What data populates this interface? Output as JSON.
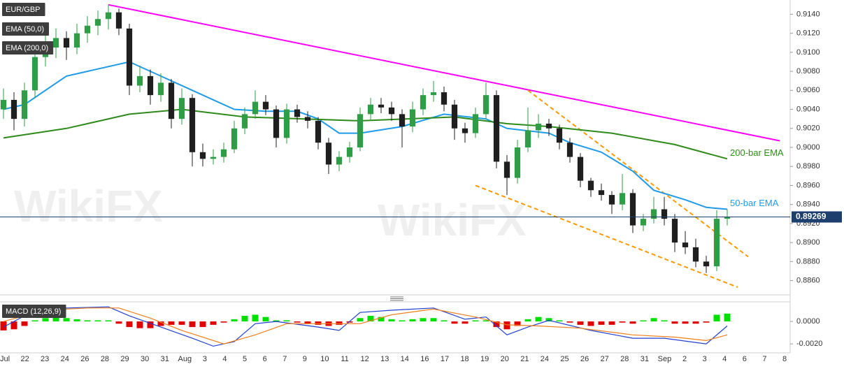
{
  "watermark": "WikiFX",
  "chart_data": [
    {
      "type": "candlestick",
      "title": "EUR/GBP",
      "up_color": "#2e9d46",
      "down_color": "#1f1f1f",
      "xlim": [
        0,
        75
      ],
      "ylim": [
        0.8845,
        0.9155
      ],
      "yticks": [
        {
          "value": 0.886,
          "label": "0.8860"
        },
        {
          "value": 0.888,
          "label": "0.8880"
        },
        {
          "value": 0.89,
          "label": "0.8900"
        },
        {
          "value": 0.892,
          "label": "0.8920"
        },
        {
          "value": 0.894,
          "label": "0.8940"
        },
        {
          "value": 0.896,
          "label": "0.8960"
        },
        {
          "value": 0.898,
          "label": "0.8980"
        },
        {
          "value": 0.9,
          "label": "0.9000"
        },
        {
          "value": 0.902,
          "label": "0.9020"
        },
        {
          "value": 0.904,
          "label": "0.9040"
        },
        {
          "value": 0.906,
          "label": "0.9060"
        },
        {
          "value": 0.908,
          "label": "0.9080"
        },
        {
          "value": 0.91,
          "label": "0.9100"
        },
        {
          "value": 0.912,
          "label": "0.9120"
        },
        {
          "value": 0.914,
          "label": "0.9140"
        }
      ],
      "x_labels": [
        "Jul",
        "22",
        "23",
        "24",
        "26",
        "28",
        "29",
        "30",
        "31",
        "Aug",
        "3",
        "4",
        "5",
        "6",
        "7",
        "9",
        "10",
        "11",
        "12",
        "13",
        "14",
        "16",
        "17",
        "18",
        "19",
        "20",
        "21",
        "24",
        "25",
        "26",
        "27",
        "28",
        "31",
        "Sep",
        "2",
        "3",
        "4",
        "6",
        "7",
        "8"
      ],
      "last_price": {
        "value": 0.89269,
        "label": "0.89269",
        "color": "#1d3f6e"
      },
      "candles": [
        [
          0.904,
          0.9062,
          0.903,
          0.905
        ],
        [
          0.905,
          0.9058,
          0.9018,
          0.903
        ],
        [
          0.903,
          0.9068,
          0.9022,
          0.906
        ],
        [
          0.906,
          0.9104,
          0.9052,
          0.9095
        ],
        [
          0.9095,
          0.912,
          0.9085,
          0.9105
        ],
        [
          0.9105,
          0.9125,
          0.9094,
          0.9115
        ],
        [
          0.9115,
          0.9122,
          0.9092,
          0.9105
        ],
        [
          0.9105,
          0.913,
          0.9098,
          0.912
        ],
        [
          0.912,
          0.9138,
          0.911,
          0.9128
        ],
        [
          0.9128,
          0.9144,
          0.9118,
          0.9135
        ],
        [
          0.9135,
          0.915,
          0.9124,
          0.9142
        ],
        [
          0.9142,
          0.9146,
          0.9118,
          0.9125
        ],
        [
          0.9125,
          0.913,
          0.9055,
          0.9065
        ],
        [
          0.9065,
          0.9086,
          0.9058,
          0.9075
        ],
        [
          0.9075,
          0.9082,
          0.9045,
          0.9055
        ],
        [
          0.9055,
          0.9078,
          0.9048,
          0.9068
        ],
        [
          0.9068,
          0.9072,
          0.902,
          0.903
        ],
        [
          0.903,
          0.9062,
          0.9024,
          0.9052
        ],
        [
          0.9052,
          0.9056,
          0.898,
          0.8995
        ],
        [
          0.8995,
          0.9004,
          0.898,
          0.8988
        ],
        [
          0.8988,
          0.8998,
          0.8982,
          0.899
        ],
        [
          0.899,
          0.9005,
          0.8984,
          0.8998
        ],
        [
          0.8998,
          0.9028,
          0.8994,
          0.902
        ],
        [
          0.902,
          0.9042,
          0.9014,
          0.9035
        ],
        [
          0.9035,
          0.906,
          0.903,
          0.9048
        ],
        [
          0.9048,
          0.9055,
          0.9034,
          0.904
        ],
        [
          0.904,
          0.9044,
          0.9,
          0.901
        ],
        [
          0.901,
          0.9046,
          0.9004,
          0.904
        ],
        [
          0.904,
          0.9045,
          0.9026,
          0.9032
        ],
        [
          0.9032,
          0.9038,
          0.902,
          0.9028
        ],
        [
          0.9028,
          0.9032,
          0.8998,
          0.9005
        ],
        [
          0.9005,
          0.901,
          0.8972,
          0.8982
        ],
        [
          0.8982,
          0.8996,
          0.8975,
          0.899
        ],
        [
          0.899,
          0.9006,
          0.8984,
          0.9
        ],
        [
          0.9,
          0.9042,
          0.8996,
          0.9035
        ],
        [
          0.9035,
          0.9052,
          0.9028,
          0.9045
        ],
        [
          0.9045,
          0.9052,
          0.9036,
          0.9042
        ],
        [
          0.9042,
          0.9048,
          0.9028,
          0.9035
        ],
        [
          0.9035,
          0.904,
          0.9,
          0.9022
        ],
        [
          0.9022,
          0.9048,
          0.9016,
          0.904
        ],
        [
          0.904,
          0.9062,
          0.9034,
          0.9055
        ],
        [
          0.9055,
          0.907,
          0.9048,
          0.9058
        ],
        [
          0.9058,
          0.9064,
          0.9038,
          0.9045
        ],
        [
          0.9045,
          0.905,
          0.9008,
          0.902
        ],
        [
          0.902,
          0.9026,
          0.9005,
          0.9015
        ],
        [
          0.9015,
          0.9042,
          0.901,
          0.9035
        ],
        [
          0.9035,
          0.9068,
          0.903,
          0.9055
        ],
        [
          0.9055,
          0.906,
          0.8978,
          0.8985
        ],
        [
          0.8985,
          0.8992,
          0.895,
          0.8968
        ],
        [
          0.8968,
          0.9008,
          0.8962,
          0.9
        ],
        [
          0.9,
          0.9042,
          0.8995,
          0.9018
        ],
        [
          0.9018,
          0.9035,
          0.901,
          0.9025
        ],
        [
          0.9025,
          0.903,
          0.9012,
          0.902
        ],
        [
          0.902,
          0.9024,
          0.8998,
          0.9005
        ],
        [
          0.9005,
          0.901,
          0.8984,
          0.899
        ],
        [
          0.899,
          0.8994,
          0.8958,
          0.8965
        ],
        [
          0.8965,
          0.8968,
          0.8948,
          0.8955
        ],
        [
          0.8955,
          0.8962,
          0.8944,
          0.895
        ],
        [
          0.895,
          0.8954,
          0.893,
          0.894
        ],
        [
          0.894,
          0.8972,
          0.8934,
          0.8952
        ],
        [
          0.8952,
          0.8956,
          0.891,
          0.8918
        ],
        [
          0.8918,
          0.893,
          0.8912,
          0.8925
        ],
        [
          0.8925,
          0.8948,
          0.892,
          0.8935
        ],
        [
          0.8935,
          0.8948,
          0.8918,
          0.8925
        ],
        [
          0.8925,
          0.893,
          0.889,
          0.89
        ],
        [
          0.89,
          0.8912,
          0.8888,
          0.8895
        ],
        [
          0.8895,
          0.8904,
          0.8874,
          0.888
        ],
        [
          0.888,
          0.8886,
          0.8868,
          0.8875
        ],
        [
          0.8875,
          0.8934,
          0.887,
          0.8925
        ],
        [
          0.8925,
          0.8935,
          0.8918,
          0.8927
        ]
      ],
      "series": [
        {
          "name": "EMA (50,0)",
          "label": "50-bar EMA",
          "color": "#1e9be9",
          "x": [
            0,
            2,
            6,
            12,
            15,
            18,
            22,
            25,
            28,
            30,
            32,
            34,
            38,
            42,
            46,
            48,
            52,
            54,
            57,
            60,
            62,
            65,
            67,
            69
          ],
          "values": [
            0.904,
            0.9045,
            0.9075,
            0.909,
            0.9075,
            0.906,
            0.904,
            0.9038,
            0.9038,
            0.903,
            0.9015,
            0.9015,
            0.9022,
            0.9035,
            0.903,
            0.902,
            0.9015,
            0.9005,
            0.8995,
            0.8975,
            0.8955,
            0.8945,
            0.8937,
            0.8935
          ]
        },
        {
          "name": "EMA (200,0)",
          "label": "200-bar EMA",
          "color": "#2e8b19",
          "x": [
            0,
            6,
            12,
            17,
            23,
            34,
            43,
            48,
            52,
            58,
            64,
            69
          ],
          "values": [
            0.901,
            0.902,
            0.9035,
            0.904,
            0.9032,
            0.9028,
            0.9032,
            0.9025,
            0.9022,
            0.9015,
            0.9003,
            0.8988
          ]
        }
      ],
      "trendlines": [
        {
          "color": "#ff00ff",
          "dashed": false,
          "x": [
            10,
            74
          ],
          "values": [
            0.915,
            0.9007
          ]
        },
        {
          "color": "#ff9900",
          "dashed": true,
          "x": [
            50,
            71
          ],
          "values": [
            0.906,
            0.8885
          ]
        },
        {
          "color": "#ff9900",
          "dashed": true,
          "x": [
            45,
            70
          ],
          "values": [
            0.896,
            0.8853
          ]
        }
      ]
    },
    {
      "type": "macd",
      "title": "MACD (12,26,9)",
      "xlim": [
        0,
        75
      ],
      "ylim": [
        -0.0028,
        0.00175
      ],
      "yticks": [
        {
          "value": -0.002,
          "label": "-0.0020"
        },
        {
          "value": 0,
          "label": "0.0000"
        }
      ],
      "histogram": {
        "up_color": "#00e000",
        "down_color": "#e00000",
        "values": [
          -0.0008,
          -0.0007,
          -0.0004,
          0.0001,
          0.0003,
          0.0004,
          0.0003,
          0.0002,
          0.0001,
          0.0001,
          0.0001,
          -0.0002,
          -0.0005,
          -0.0006,
          -0.0006,
          -0.0004,
          -0.0003,
          -0.0003,
          -0.0005,
          -0.0005,
          -0.0003,
          -0.0001,
          0.0002,
          0.0005,
          0.0006,
          0.0004,
          0.0001,
          0.0001,
          -0.0001,
          -0.0002,
          -0.0003,
          -0.0004,
          -0.0003,
          -0.0001,
          0.0003,
          0.0005,
          0.0004,
          0.0002,
          0.0001,
          0.0002,
          0.0003,
          0.0003,
          0.0001,
          -0.0002,
          -0.0002,
          0.0001,
          0.0001,
          -0.0005,
          -0.0007,
          -0.0004,
          0.0002,
          0.0004,
          0.0003,
          0.0001,
          -0.0001,
          -0.0003,
          -0.0004,
          -0.0003,
          -0.0003,
          -0.0001,
          -0.0002,
          0.0001,
          0.0003,
          0.0001,
          -0.0002,
          -0.0002,
          -0.0002,
          -0.0001,
          0.0006,
          0.0007
        ]
      },
      "series": [
        {
          "color": "#1f3fd0",
          "x": [
            0,
            3,
            6,
            10,
            12,
            15,
            18,
            20,
            22,
            24,
            26,
            30,
            32,
            34,
            37,
            41,
            44,
            46,
            48,
            50,
            52,
            56,
            60,
            63,
            67,
            69
          ],
          "values": [
            -0.0005,
            0.001,
            0.0012,
            0.0013,
            0.0005,
            -0.0005,
            -0.0015,
            -0.0022,
            -0.0018,
            -0.0002,
            0.0,
            -0.0005,
            -0.0008,
            0.0008,
            0.001,
            0.0012,
            0.0002,
            0.0004,
            -0.0012,
            -0.0005,
            0.0001,
            -0.0008,
            -0.0015,
            -0.0015,
            -0.002,
            -0.0004
          ]
        },
        {
          "color": "#f07f1a",
          "x": [
            0,
            4,
            8,
            11,
            14,
            17,
            21,
            24,
            27,
            31,
            34,
            37,
            41,
            45,
            48,
            51,
            55,
            60,
            64,
            67,
            69
          ],
          "values": [
            0.0,
            0.001,
            0.0012,
            0.0012,
            0.0003,
            -0.0008,
            -0.002,
            -0.0012,
            -0.0002,
            -0.0002,
            -0.0002,
            0.0006,
            0.0011,
            0.0004,
            -0.0003,
            -0.0004,
            -0.0006,
            -0.0012,
            -0.0014,
            -0.0017,
            -0.0012
          ]
        }
      ]
    }
  ]
}
